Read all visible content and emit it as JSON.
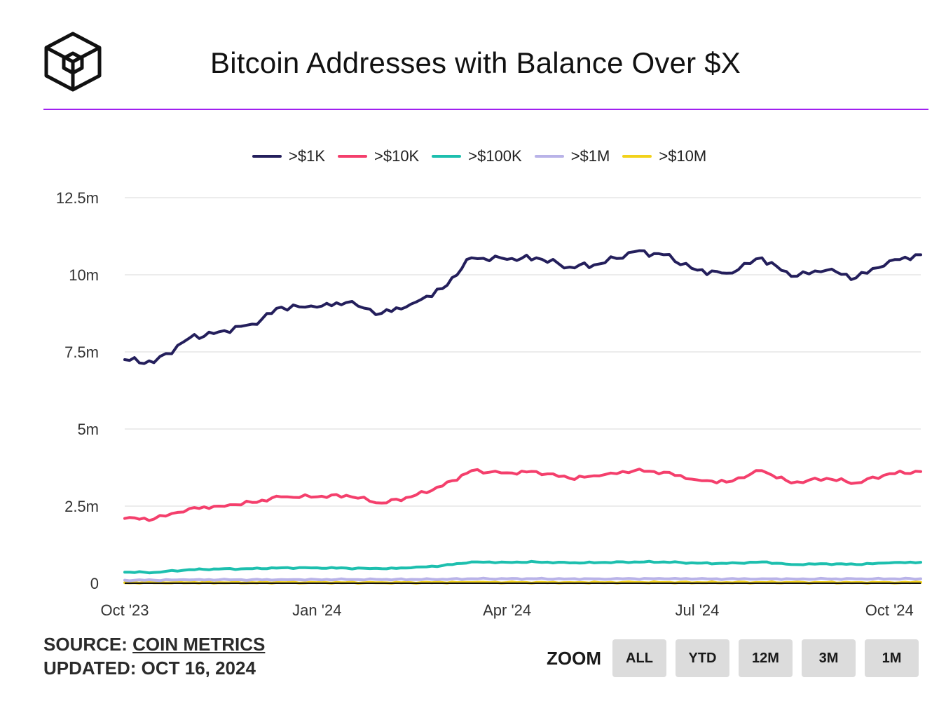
{
  "header": {
    "title": "Bitcoin Addresses with Balance Over $X",
    "logo_icon": "cube-logo-icon",
    "rule_color": "#a020f0"
  },
  "footer": {
    "source_prefix": "SOURCE: ",
    "source_name": "COIN METRICS",
    "updated_text": "UPDATED: OCT 16, 2024"
  },
  "zoom": {
    "label": "ZOOM",
    "buttons": [
      "ALL",
      "YTD",
      "12M",
      "3M",
      "1M"
    ]
  },
  "chart_data": {
    "type": "line",
    "title": "Bitcoin Addresses with Balance Over $X",
    "xlabel": "",
    "ylabel": "",
    "ylim": [
      0,
      12500000
    ],
    "y_ticks": [
      0,
      2500000,
      5000000,
      7500000,
      10000000,
      12500000
    ],
    "y_tick_labels": [
      "0",
      "2.5m",
      "5m",
      "7.5m",
      "10m",
      "12.5m"
    ],
    "x_range": [
      "2023-10-01",
      "2024-10-16"
    ],
    "x_ticks": [
      "2023-10-01",
      "2024-01-01",
      "2024-04-01",
      "2024-07-01",
      "2024-10-01"
    ],
    "x_tick_labels": [
      "Oct '23",
      "Jan '24",
      "Apr '24",
      "Jul '24",
      "Oct '24"
    ],
    "grid": true,
    "legend_position": "top",
    "x": [
      "2023-10-01",
      "2023-10-15",
      "2023-11-01",
      "2023-11-15",
      "2023-12-01",
      "2023-12-15",
      "2024-01-01",
      "2024-01-15",
      "2024-02-01",
      "2024-02-15",
      "2024-03-01",
      "2024-03-15",
      "2024-04-01",
      "2024-04-15",
      "2024-05-01",
      "2024-05-15",
      "2024-06-01",
      "2024-06-15",
      "2024-07-01",
      "2024-07-15",
      "2024-08-01",
      "2024-08-15",
      "2024-09-01",
      "2024-09-15",
      "2024-10-01",
      "2024-10-16"
    ],
    "series": [
      {
        "name": ">$1K",
        "color": "#241f5c",
        "values": [
          7250000,
          7150000,
          7950000,
          8150000,
          8400000,
          8950000,
          8950000,
          9100000,
          8750000,
          9050000,
          9550000,
          10550000,
          10500000,
          10550000,
          10250000,
          10350000,
          10750000,
          10650000,
          10150000,
          10050000,
          10550000,
          9950000,
          10150000,
          9900000,
          10450000,
          10650000
        ]
      },
      {
        "name": ">$10K",
        "color": "#f43f6c",
        "values": [
          2100000,
          2080000,
          2420000,
          2500000,
          2620000,
          2800000,
          2800000,
          2850000,
          2600000,
          2800000,
          3150000,
          3650000,
          3580000,
          3620000,
          3400000,
          3480000,
          3650000,
          3600000,
          3350000,
          3280000,
          3650000,
          3250000,
          3400000,
          3250000,
          3550000,
          3620000
        ]
      },
      {
        "name": ">$100K",
        "color": "#1dbfae",
        "values": [
          360000,
          350000,
          440000,
          460000,
          470000,
          500000,
          500000,
          490000,
          470000,
          500000,
          570000,
          690000,
          680000,
          690000,
          660000,
          670000,
          690000,
          690000,
          650000,
          640000,
          690000,
          610000,
          630000,
          610000,
          660000,
          680000
        ]
      },
      {
        "name": ">$1M",
        "color": "#b9b3e8",
        "values": [
          100000,
          100000,
          110000,
          112000,
          115000,
          118000,
          120000,
          122000,
          120000,
          124000,
          130000,
          145000,
          144000,
          146000,
          142000,
          143000,
          146000,
          145000,
          140000,
          139000,
          145000,
          138000,
          140000,
          138000,
          143000,
          146000
        ]
      },
      {
        "name": ">$10M",
        "color": "#f2d21b",
        "values": [
          18000,
          18000,
          19000,
          19500,
          20000,
          20500,
          21000,
          21000,
          20500,
          21000,
          22000,
          24000,
          23500,
          24000,
          23500,
          23500,
          24000,
          24000,
          23000,
          23000,
          24000,
          22500,
          23000,
          22500,
          23500,
          24000
        ]
      }
    ]
  }
}
